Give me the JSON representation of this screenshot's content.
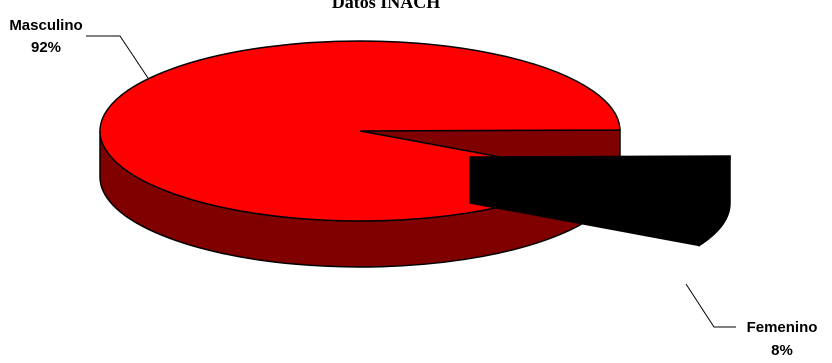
{
  "chart_data": {
    "type": "pie",
    "title": "Datos INACH",
    "three_d": true,
    "exploded": "Femenino",
    "slices": [
      {
        "name": "Masculino",
        "label": "Masculino",
        "value_label": "92%",
        "value": 92,
        "color": "#ff0000",
        "side_color": "#800000"
      },
      {
        "name": "Femenino",
        "label": "Femenino",
        "value_label": "8%",
        "value": 8,
        "color": "#000000",
        "side_color": "#000000"
      }
    ]
  }
}
